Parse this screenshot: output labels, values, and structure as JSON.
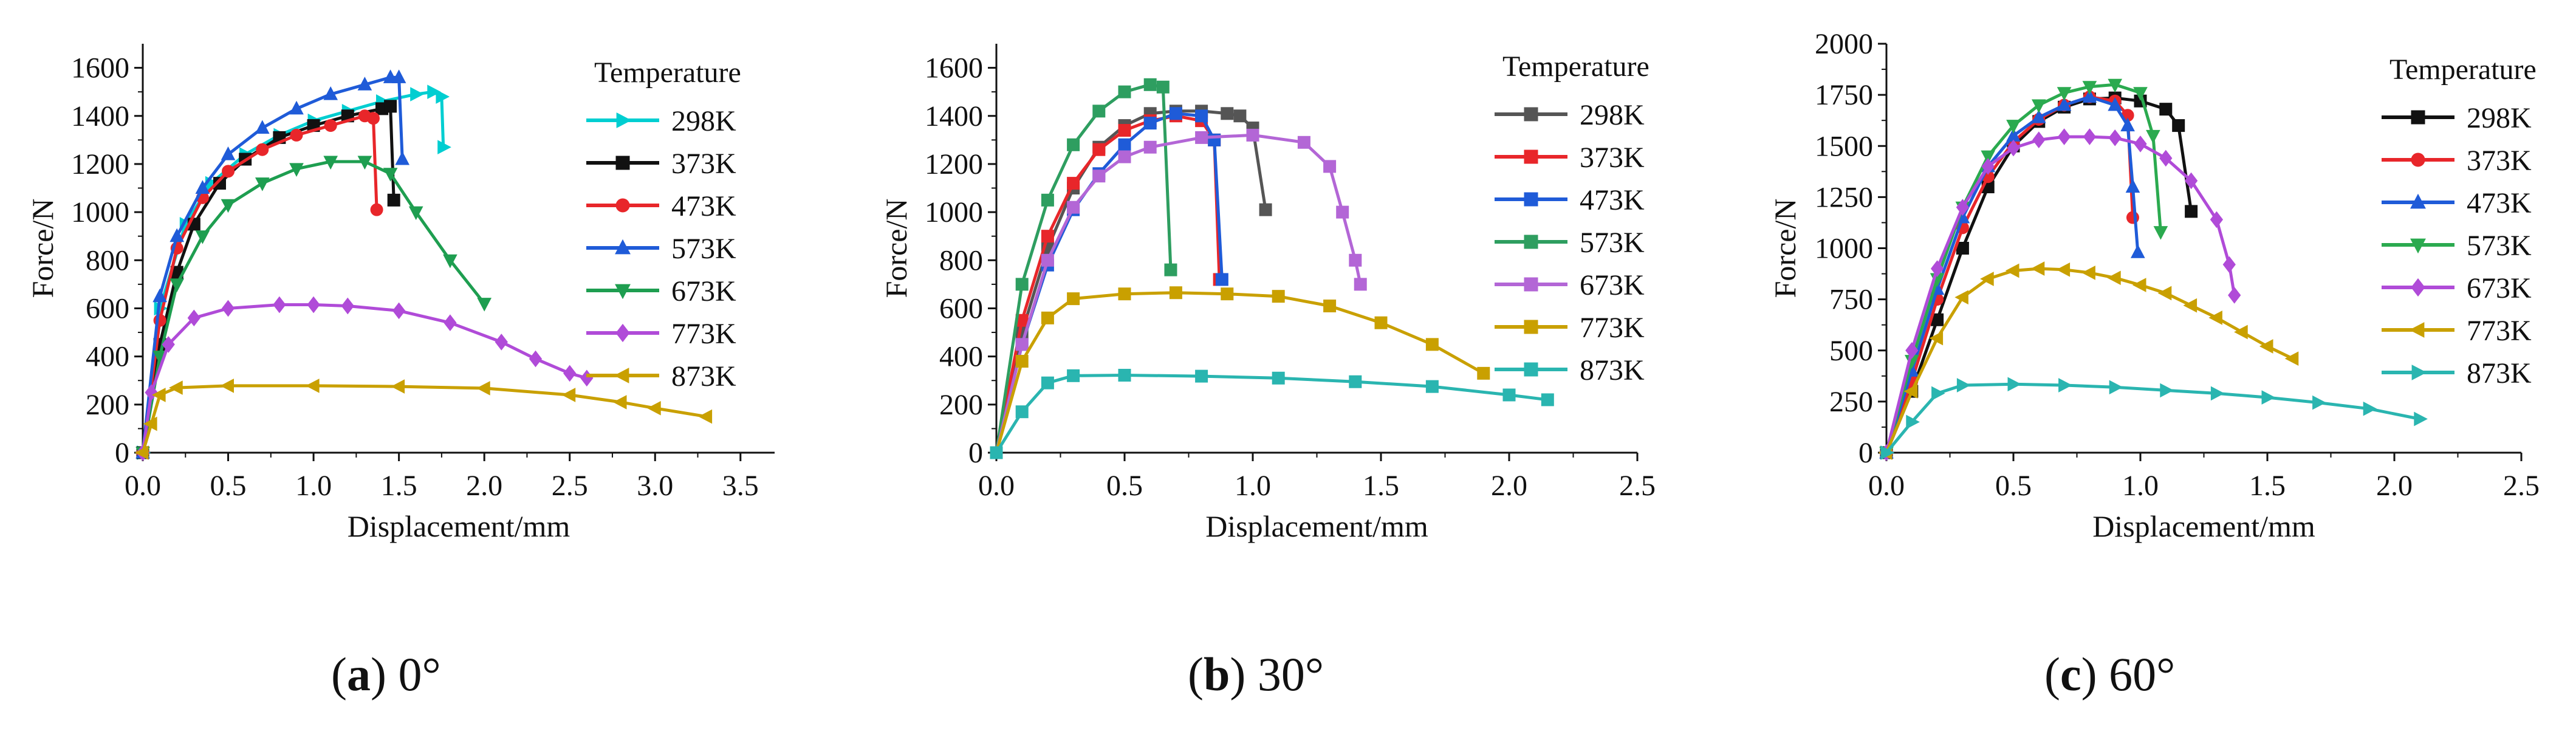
{
  "chart_data": [
    {
      "type": "line",
      "panel_label": "a",
      "caption": "0°",
      "xlabel": "Displacement/mm",
      "ylabel": "Force/N",
      "xlim": [
        0,
        3.7
      ],
      "ylim": [
        0,
        1700
      ],
      "xticks": [
        0.0,
        0.5,
        1.0,
        1.5,
        2.0,
        2.5,
        3.0,
        3.5
      ],
      "yticks": [
        0,
        200,
        400,
        600,
        800,
        1000,
        1200,
        1400,
        1600
      ],
      "legend_title": "Temperature",
      "legend_position": "right",
      "series": [
        {
          "name": "298K",
          "color": "#00CED1",
          "marker": "triangle-right",
          "x": [
            0,
            0.1,
            0.25,
            0.4,
            0.6,
            0.8,
            1.0,
            1.2,
            1.4,
            1.6,
            1.7,
            1.75,
            1.76
          ],
          "y": [
            0,
            600,
            950,
            1120,
            1240,
            1320,
            1380,
            1420,
            1460,
            1490,
            1500,
            1480,
            1270
          ]
        },
        {
          "name": "373K",
          "color": "#111111",
          "marker": "square",
          "x": [
            0,
            0.1,
            0.2,
            0.3,
            0.45,
            0.6,
            0.8,
            1.0,
            1.2,
            1.4,
            1.45,
            1.47
          ],
          "y": [
            0,
            450,
            750,
            950,
            1120,
            1220,
            1310,
            1360,
            1400,
            1430,
            1440,
            1050
          ]
        },
        {
          "name": "473K",
          "color": "#E8262A",
          "marker": "circle",
          "x": [
            0,
            0.1,
            0.2,
            0.35,
            0.5,
            0.7,
            0.9,
            1.1,
            1.3,
            1.35,
            1.37
          ],
          "y": [
            0,
            550,
            850,
            1060,
            1170,
            1260,
            1320,
            1360,
            1400,
            1390,
            1010
          ]
        },
        {
          "name": "573K",
          "color": "#1F5BD8",
          "marker": "triangle-up",
          "x": [
            0,
            0.1,
            0.2,
            0.35,
            0.5,
            0.7,
            0.9,
            1.1,
            1.3,
            1.45,
            1.5,
            1.52
          ],
          "y": [
            0,
            650,
            900,
            1100,
            1240,
            1350,
            1430,
            1490,
            1530,
            1560,
            1560,
            1220
          ]
        },
        {
          "name": "673K",
          "color": "#1E9E50",
          "marker": "triangle-down",
          "x": [
            0,
            0.1,
            0.2,
            0.35,
            0.5,
            0.7,
            0.9,
            1.1,
            1.3,
            1.45,
            1.6,
            1.8,
            2.0
          ],
          "y": [
            0,
            400,
            700,
            900,
            1030,
            1120,
            1180,
            1210,
            1210,
            1160,
            1000,
            800,
            620
          ]
        },
        {
          "name": "773K",
          "color": "#B04BD8",
          "marker": "diamond",
          "x": [
            0,
            0.05,
            0.15,
            0.3,
            0.5,
            0.8,
            1.0,
            1.2,
            1.5,
            1.8,
            2.1,
            2.3,
            2.5,
            2.6
          ],
          "y": [
            0,
            250,
            450,
            560,
            600,
            615,
            615,
            610,
            590,
            540,
            460,
            390,
            330,
            310
          ]
        },
        {
          "name": "873K",
          "color": "#C9A000",
          "marker": "triangle-left",
          "x": [
            0,
            0.05,
            0.1,
            0.2,
            0.5,
            1.0,
            1.5,
            2.0,
            2.5,
            2.8,
            3.0,
            3.3
          ],
          "y": [
            0,
            120,
            240,
            270,
            278,
            278,
            275,
            268,
            240,
            210,
            185,
            150
          ]
        }
      ]
    },
    {
      "type": "line",
      "panel_label": "b",
      "caption": "30°",
      "xlabel": "Displacement/mm",
      "ylabel": "Force/N",
      "xlim": [
        0,
        2.5
      ],
      "ylim": [
        0,
        1700
      ],
      "xticks": [
        0.0,
        0.5,
        1.0,
        1.5,
        2.0,
        2.5
      ],
      "yticks": [
        0,
        200,
        400,
        600,
        800,
        1000,
        1200,
        1400,
        1600
      ],
      "legend_title": "Temperature",
      "legend_position": "right",
      "series": [
        {
          "name": "298K",
          "color": "#555555",
          "marker": "square",
          "x": [
            0,
            0.1,
            0.2,
            0.3,
            0.4,
            0.5,
            0.6,
            0.7,
            0.8,
            0.9,
            0.95,
            1.0,
            1.05
          ],
          "y": [
            0,
            500,
            850,
            1100,
            1270,
            1360,
            1410,
            1420,
            1420,
            1410,
            1400,
            1350,
            1010
          ]
        },
        {
          "name": "373K",
          "color": "#E8262A",
          "marker": "square",
          "x": [
            0,
            0.1,
            0.2,
            0.3,
            0.4,
            0.5,
            0.6,
            0.7,
            0.8,
            0.85,
            0.87
          ],
          "y": [
            0,
            550,
            900,
            1120,
            1260,
            1340,
            1380,
            1400,
            1380,
            1300,
            720
          ]
        },
        {
          "name": "473K",
          "color": "#1F5BD8",
          "marker": "square",
          "x": [
            0,
            0.1,
            0.2,
            0.3,
            0.4,
            0.5,
            0.6,
            0.7,
            0.8,
            0.85,
            0.88
          ],
          "y": [
            0,
            450,
            780,
            1010,
            1160,
            1280,
            1370,
            1410,
            1400,
            1300,
            720
          ]
        },
        {
          "name": "573K",
          "color": "#2E9E60",
          "marker": "square",
          "x": [
            0,
            0.1,
            0.2,
            0.3,
            0.4,
            0.5,
            0.6,
            0.65,
            0.68
          ],
          "y": [
            0,
            700,
            1050,
            1280,
            1420,
            1500,
            1530,
            1520,
            760
          ]
        },
        {
          "name": "673K",
          "color": "#B366D6",
          "marker": "square",
          "x": [
            0,
            0.1,
            0.2,
            0.3,
            0.4,
            0.5,
            0.6,
            0.8,
            1.0,
            1.2,
            1.3,
            1.35,
            1.4,
            1.42
          ],
          "y": [
            0,
            450,
            800,
            1020,
            1150,
            1230,
            1270,
            1310,
            1320,
            1290,
            1190,
            1000,
            800,
            700
          ]
        },
        {
          "name": "773K",
          "color": "#C9A000",
          "marker": "square",
          "x": [
            0,
            0.1,
            0.2,
            0.3,
            0.5,
            0.7,
            0.9,
            1.1,
            1.3,
            1.5,
            1.7,
            1.9
          ],
          "y": [
            0,
            380,
            560,
            640,
            660,
            665,
            660,
            650,
            610,
            540,
            450,
            330
          ]
        },
        {
          "name": "873K",
          "color": "#2AB5B0",
          "marker": "square",
          "x": [
            0,
            0.1,
            0.2,
            0.3,
            0.5,
            0.8,
            1.1,
            1.4,
            1.7,
            2.0,
            2.15
          ],
          "y": [
            0,
            170,
            290,
            320,
            322,
            318,
            310,
            295,
            275,
            240,
            220
          ]
        }
      ]
    },
    {
      "type": "line",
      "panel_label": "c",
      "caption": "60°",
      "xlabel": "Displacement/mm",
      "ylabel": "Force/N",
      "xlim": [
        0,
        2.5
      ],
      "ylim": [
        0,
        2000
      ],
      "xticks": [
        0.0,
        0.5,
        1.0,
        1.5,
        2.0,
        2.5
      ],
      "yticks": [
        0,
        250,
        500,
        750,
        1000,
        1250,
        1500,
        1750,
        2000
      ],
      "legend_title": "Temperature",
      "legend_position": "right",
      "series": [
        {
          "name": "298K",
          "color": "#111111",
          "marker": "square",
          "x": [
            0,
            0.1,
            0.2,
            0.3,
            0.4,
            0.5,
            0.6,
            0.7,
            0.8,
            0.9,
            1.0,
            1.1,
            1.15,
            1.2
          ],
          "y": [
            0,
            300,
            650,
            1000,
            1300,
            1500,
            1620,
            1690,
            1730,
            1735,
            1720,
            1680,
            1600,
            1180
          ]
        },
        {
          "name": "373K",
          "color": "#E8262A",
          "marker": "circle",
          "x": [
            0,
            0.1,
            0.2,
            0.3,
            0.4,
            0.5,
            0.6,
            0.7,
            0.8,
            0.9,
            0.95,
            0.97
          ],
          "y": [
            0,
            350,
            750,
            1100,
            1350,
            1520,
            1630,
            1700,
            1740,
            1720,
            1650,
            1150
          ]
        },
        {
          "name": "473K",
          "color": "#1F5BD8",
          "marker": "triangle-up",
          "x": [
            0,
            0.1,
            0.2,
            0.3,
            0.4,
            0.5,
            0.6,
            0.7,
            0.8,
            0.9,
            0.95,
            0.97,
            0.99
          ],
          "y": [
            0,
            400,
            800,
            1150,
            1400,
            1550,
            1640,
            1700,
            1740,
            1700,
            1600,
            1300,
            980
          ]
        },
        {
          "name": "573K",
          "color": "#2BAA4F",
          "marker": "triangle-down",
          "x": [
            0,
            0.1,
            0.2,
            0.3,
            0.4,
            0.5,
            0.6,
            0.7,
            0.8,
            0.9,
            1.0,
            1.05,
            1.08
          ],
          "y": [
            0,
            450,
            850,
            1200,
            1450,
            1600,
            1700,
            1760,
            1790,
            1800,
            1760,
            1550,
            1080
          ]
        },
        {
          "name": "673K",
          "color": "#B04BD8",
          "marker": "diamond",
          "x": [
            0,
            0.1,
            0.2,
            0.3,
            0.4,
            0.5,
            0.6,
            0.7,
            0.8,
            0.9,
            1.0,
            1.1,
            1.2,
            1.3,
            1.35,
            1.37
          ],
          "y": [
            0,
            500,
            900,
            1200,
            1400,
            1490,
            1530,
            1545,
            1545,
            1540,
            1510,
            1440,
            1330,
            1140,
            920,
            770
          ]
        },
        {
          "name": "773K",
          "color": "#C9A000",
          "marker": "triangle-left",
          "x": [
            0,
            0.1,
            0.2,
            0.3,
            0.4,
            0.5,
            0.6,
            0.7,
            0.8,
            0.9,
            1.0,
            1.1,
            1.2,
            1.3,
            1.4,
            1.5,
            1.6
          ],
          "y": [
            0,
            300,
            560,
            760,
            850,
            890,
            900,
            895,
            880,
            855,
            820,
            780,
            720,
            660,
            590,
            520,
            460
          ]
        },
        {
          "name": "873K",
          "color": "#2AB5B0",
          "marker": "triangle-right",
          "x": [
            0,
            0.1,
            0.2,
            0.3,
            0.5,
            0.7,
            0.9,
            1.1,
            1.3,
            1.5,
            1.7,
            1.9,
            2.1
          ],
          "y": [
            0,
            150,
            290,
            330,
            335,
            330,
            320,
            305,
            290,
            270,
            245,
            215,
            165
          ]
        }
      ]
    }
  ]
}
